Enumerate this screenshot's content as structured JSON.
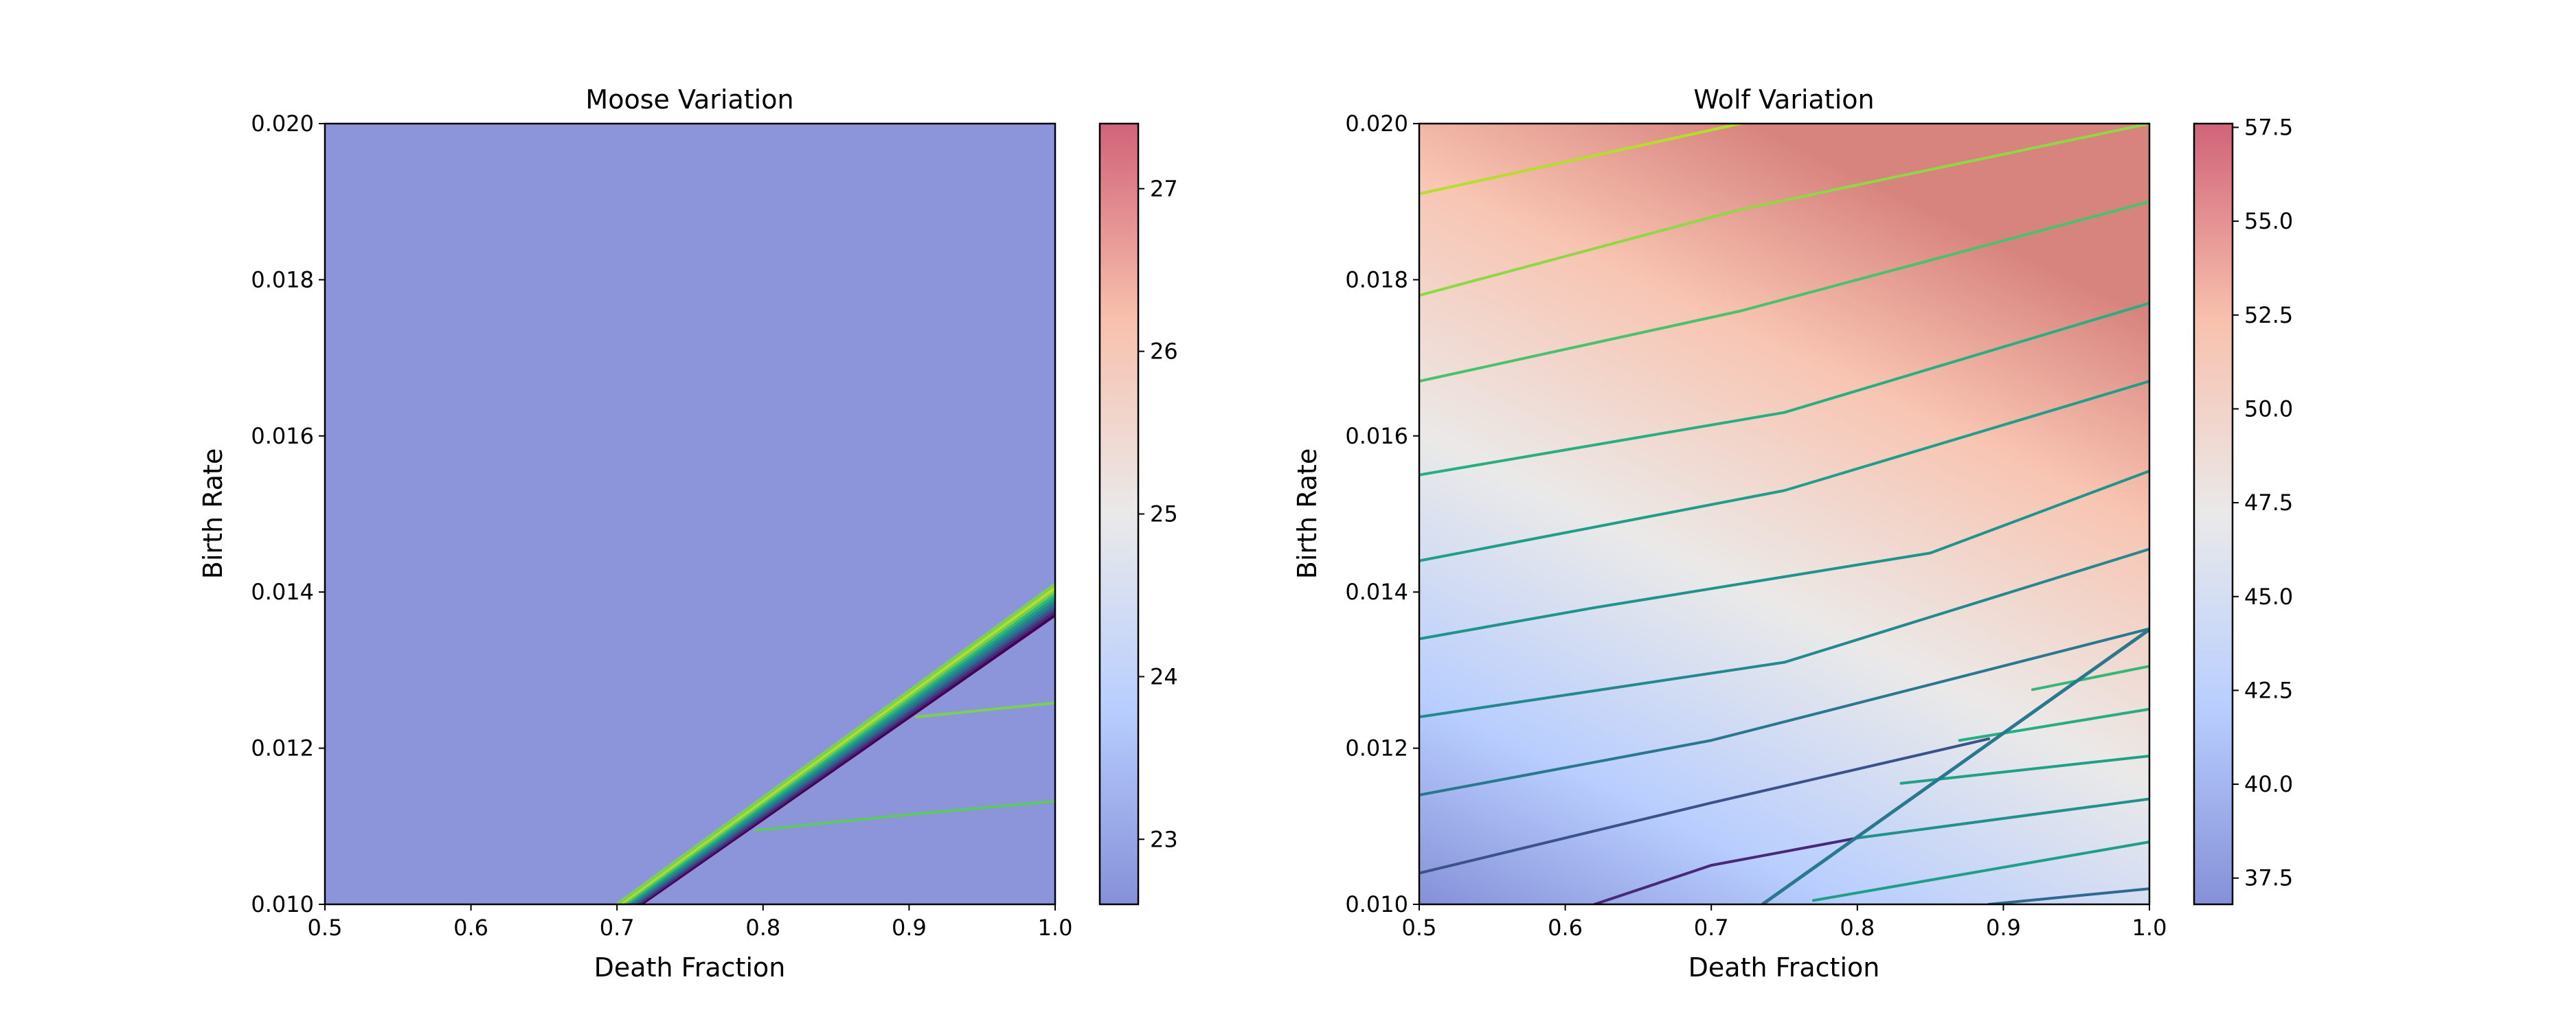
{
  "chart_data": [
    {
      "type": "heatmap",
      "title": "Moose Variation",
      "xlabel": "Death Fraction",
      "ylabel": "Birth Rate",
      "xlim": [
        0.5,
        1.0
      ],
      "ylim": [
        0.01,
        0.02
      ],
      "xticks": [
        "0.5",
        "0.6",
        "0.7",
        "0.8",
        "0.9",
        "1.0"
      ],
      "yticks": [
        "0.010",
        "0.012",
        "0.014",
        "0.016",
        "0.018",
        "0.020"
      ],
      "colorbar": {
        "range": [
          22.6,
          27.4
        ],
        "ticks": [
          "23",
          "24",
          "25",
          "26",
          "27"
        ],
        "colormap": "coolwarm"
      },
      "background_value": 22.6,
      "region_boundary": {
        "x": [
          0.7,
          1.0
        ],
        "y": [
          0.01,
          0.0141
        ]
      },
      "region_value_range": [
        25.6,
        27.2
      ],
      "contours": [
        {
          "x": [
            0.905,
            1.0
          ],
          "y": [
            0.0124,
            0.01258
          ],
          "color": "#7ad151"
        },
        {
          "x": [
            0.795,
            0.9,
            1.0
          ],
          "y": [
            0.01095,
            0.01115,
            0.01132
          ],
          "color": "#5ec962"
        }
      ]
    },
    {
      "type": "heatmap",
      "title": "Wolf Variation",
      "xlabel": "Death Fraction",
      "ylabel": "Birth Rate",
      "xlim": [
        0.5,
        1.0
      ],
      "ylim": [
        0.01,
        0.02
      ],
      "xticks": [
        "0.5",
        "0.6",
        "0.7",
        "0.8",
        "0.9",
        "1.0"
      ],
      "yticks": [
        "0.010",
        "0.012",
        "0.014",
        "0.016",
        "0.018",
        "0.020"
      ],
      "colorbar": {
        "range": [
          36.8,
          57.6
        ],
        "ticks": [
          "37.5",
          "40.0",
          "42.5",
          "45.0",
          "47.5",
          "50.0",
          "52.5",
          "55.0",
          "57.5"
        ],
        "colormap": "coolwarm"
      },
      "region_boundary": {
        "x": [
          0.735,
          1.0
        ],
        "y": [
          0.01,
          0.01352
        ]
      },
      "contours": [
        {
          "x": [
            0.5,
            0.72,
            1.0
          ],
          "y": [
            0.0191,
            0.02,
            0.0208
          ],
          "color": "#b5de2b"
        },
        {
          "x": [
            0.5,
            0.72,
            1.0
          ],
          "y": [
            0.0178,
            0.0189,
            0.02
          ],
          "color": "#8fd744"
        },
        {
          "x": [
            0.5,
            0.72,
            1.0
          ],
          "y": [
            0.0167,
            0.0176,
            0.019
          ],
          "color": "#4ac16d"
        },
        {
          "x": [
            0.5,
            0.75,
            1.0
          ],
          "y": [
            0.0155,
            0.0163,
            0.0177
          ],
          "color": "#28ae80"
        },
        {
          "x": [
            0.5,
            0.75,
            1.0
          ],
          "y": [
            0.0144,
            0.0153,
            0.0167
          ],
          "color": "#1f9e89"
        },
        {
          "x": [
            0.5,
            0.62,
            0.85,
            1.0
          ],
          "y": [
            0.0134,
            0.0138,
            0.0145,
            0.01555
          ],
          "color": "#1f948c"
        },
        {
          "x": [
            0.5,
            0.75,
            1.0
          ],
          "y": [
            0.0124,
            0.0131,
            0.01455
          ],
          "color": "#23898e"
        },
        {
          "x": [
            0.5,
            0.7,
            1.0
          ],
          "y": [
            0.0114,
            0.0121,
            0.01353
          ],
          "color": "#2a788e"
        },
        {
          "x": [
            0.5,
            0.7,
            0.89
          ],
          "y": [
            0.0104,
            0.0113,
            0.01212
          ],
          "color": "#3b528b"
        },
        {
          "x": [
            0.62,
            0.7,
            0.8
          ],
          "y": [
            0.01,
            0.0105,
            0.01085
          ],
          "color": "#482878"
        },
        {
          "x": [
            0.77,
            1.0
          ],
          "y": [
            0.01005,
            0.0108
          ],
          "color": "#1f9e89"
        },
        {
          "x": [
            0.8,
            1.0
          ],
          "y": [
            0.01085,
            0.01135
          ],
          "color": "#21918c"
        },
        {
          "x": [
            0.83,
            1.0
          ],
          "y": [
            0.01155,
            0.0119
          ],
          "color": "#1fa188"
        },
        {
          "x": [
            0.87,
            1.0
          ],
          "y": [
            0.0121,
            0.0125
          ],
          "color": "#26ad81"
        },
        {
          "x": [
            0.92,
            1.0
          ],
          "y": [
            0.01275,
            0.01305
          ],
          "color": "#35b779"
        },
        {
          "x": [
            0.89,
            1.0
          ],
          "y": [
            0.01,
            0.0102
          ],
          "color": "#31688e"
        }
      ]
    }
  ]
}
